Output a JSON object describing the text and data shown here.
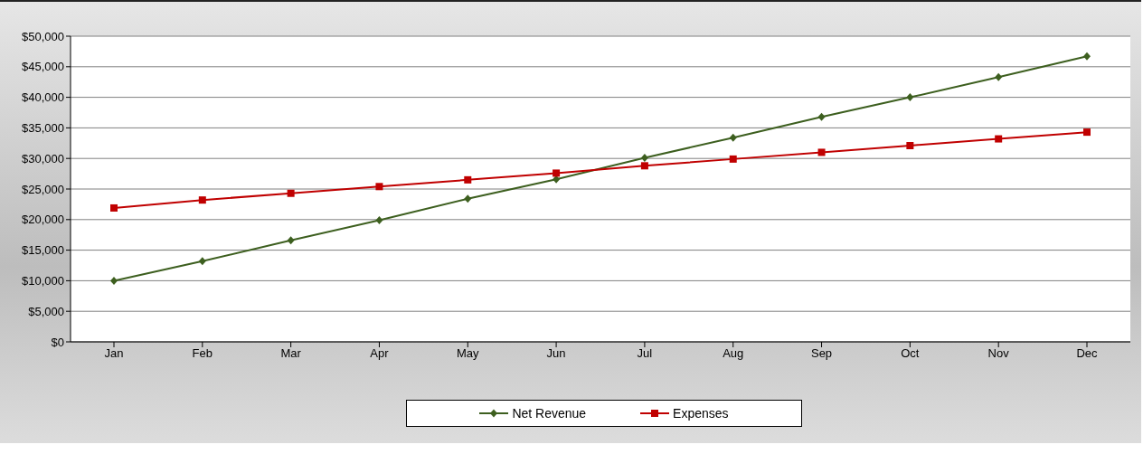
{
  "chart_data": {
    "type": "line",
    "categories": [
      "Jan",
      "Feb",
      "Mar",
      "Apr",
      "May",
      "Jun",
      "Jul",
      "Aug",
      "Sep",
      "Oct",
      "Nov",
      "Dec"
    ],
    "series": [
      {
        "name": "Net Revenue",
        "color": "#3d5f1f",
        "marker": "diamond",
        "values": [
          10000,
          13200,
          16600,
          19900,
          23400,
          26600,
          30100,
          33400,
          36800,
          40000,
          43300,
          46700
        ]
      },
      {
        "name": "Expenses",
        "color": "#c00000",
        "marker": "square",
        "values": [
          21900,
          23200,
          24300,
          25400,
          26500,
          27600,
          28800,
          29900,
          31000,
          32100,
          33200,
          34300
        ]
      }
    ],
    "ylim": [
      0,
      50000
    ],
    "yticks": [
      {
        "value": 0,
        "label": "$0"
      },
      {
        "value": 5000,
        "label": "$5,000"
      },
      {
        "value": 10000,
        "label": "$10,000"
      },
      {
        "value": 15000,
        "label": "$15,000"
      },
      {
        "value": 20000,
        "label": "$20,000"
      },
      {
        "value": 25000,
        "label": "$25,000"
      },
      {
        "value": 30000,
        "label": "$30,000"
      },
      {
        "value": 35000,
        "label": "$35,000"
      },
      {
        "value": 40000,
        "label": "$40,000"
      },
      {
        "value": 45000,
        "label": "$45,000"
      },
      {
        "value": 50000,
        "label": "$50,000"
      }
    ],
    "grid": "y",
    "legend": "bottom",
    "line_style": "solid"
  }
}
